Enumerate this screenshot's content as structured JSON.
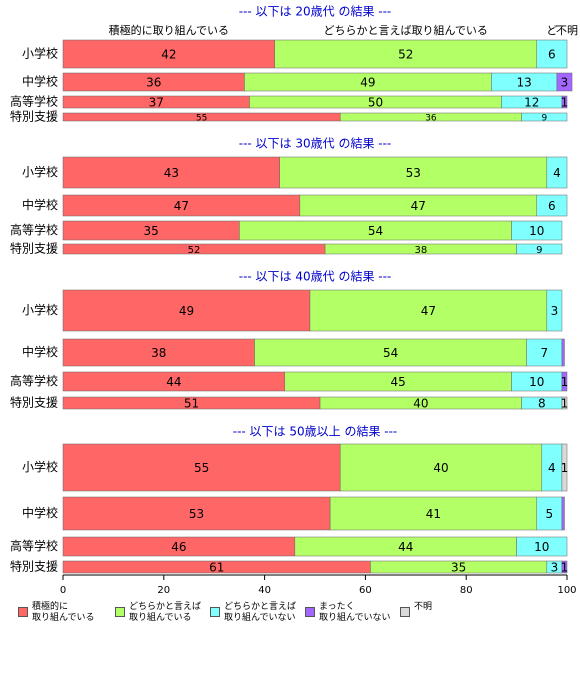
{
  "chart_data": [
    {
      "type": "stacked-bar",
      "title": "--- 以下は 20歳代 の結果 ---",
      "header_labels": [
        "積極的に取り組んでいる",
        "どちらかと言えば取り組んでいる",
        "ど",
        "不明"
      ],
      "categories": [
        "小学校",
        "中学校",
        "高等学校",
        "特別支援"
      ],
      "xlim": [
        0,
        100
      ],
      "series": [
        {
          "color": "#ff6666",
          "values": [
            42,
            36,
            37,
            55
          ]
        },
        {
          "color": "#b3ff66",
          "values": [
            52,
            49,
            50,
            36
          ]
        },
        {
          "color": "#80ffff",
          "values": [
            6,
            13,
            12,
            9
          ]
        },
        {
          "color": "#a366ff",
          "values": [
            0,
            3,
            1,
            0
          ]
        },
        {
          "color": "#d9d9d9",
          "values": [
            0,
            0,
            0,
            0
          ]
        }
      ]
    },
    {
      "type": "stacked-bar",
      "title": "--- 以下は 30歳代 の結果 ---",
      "categories": [
        "小学校",
        "中学校",
        "高等学校",
        "特別支援"
      ],
      "xlim": [
        0,
        100
      ],
      "series": [
        {
          "color": "#ff6666",
          "values": [
            43,
            47,
            35,
            52
          ]
        },
        {
          "color": "#b3ff66",
          "values": [
            53,
            47,
            54,
            38
          ]
        },
        {
          "color": "#80ffff",
          "values": [
            4,
            6,
            10,
            9
          ]
        },
        {
          "color": "#a366ff",
          "values": [
            0,
            0,
            0,
            0
          ]
        },
        {
          "color": "#d9d9d9",
          "values": [
            0,
            0,
            0,
            0
          ]
        }
      ]
    },
    {
      "type": "stacked-bar",
      "title": "--- 以下は 40歳代 の結果 ---",
      "categories": [
        "小学校",
        "中学校",
        "高等学校",
        "特別支援"
      ],
      "xlim": [
        0,
        100
      ],
      "series": [
        {
          "color": "#ff6666",
          "values": [
            49,
            38,
            44,
            51
          ]
        },
        {
          "color": "#b3ff66",
          "values": [
            47,
            54,
            45,
            40
          ]
        },
        {
          "color": "#80ffff",
          "values": [
            3,
            7,
            10,
            8
          ]
        },
        {
          "color": "#a366ff",
          "values": [
            0,
            0.5,
            1,
            0
          ]
        },
        {
          "color": "#d9d9d9",
          "values": [
            0,
            0,
            0,
            1
          ]
        }
      ]
    },
    {
      "type": "stacked-bar",
      "title": "--- 以下は 50歳以上 の結果 ---",
      "categories": [
        "小学校",
        "中学校",
        "高等学校",
        "特別支援"
      ],
      "xlim": [
        0,
        100
      ],
      "xticks": [
        0,
        20,
        40,
        60,
        80,
        100
      ],
      "series": [
        {
          "name": "積極的に\n取り組んでいる",
          "color": "#ff6666",
          "values": [
            55,
            53,
            46,
            61
          ]
        },
        {
          "name": "どちらかと言えば\n取り組んでいる",
          "color": "#b3ff66",
          "values": [
            40,
            41,
            44,
            35
          ]
        },
        {
          "name": "どちらかと言えば\n取り組んでいない",
          "color": "#80ffff",
          "values": [
            4,
            5,
            10,
            3
          ]
        },
        {
          "name": "まったく\n取り組んでいない",
          "color": "#a366ff",
          "values": [
            0,
            0.5,
            0,
            1
          ]
        },
        {
          "name": "不明",
          "color": "#d9d9d9",
          "values": [
            1,
            0,
            0,
            0
          ]
        }
      ]
    }
  ]
}
